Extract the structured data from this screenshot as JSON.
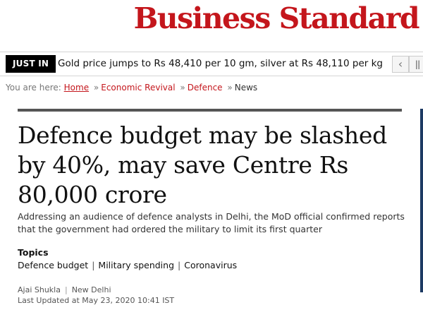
{
  "brand": {
    "logo_text": "Business Standard",
    "accent_color": "#c4161c"
  },
  "ticker": {
    "badge": "JUST IN",
    "headline": "Gold price jumps to Rs 48,410 per 10 gm, silver at Rs 48,110 per kg",
    "prev_icon": "chevron-left-icon",
    "pause_icon": "pause-icon"
  },
  "breadcrumb": {
    "label": "You are here:",
    "items": [
      "Home",
      "Economic Revival",
      "Defence",
      "News"
    ],
    "separator": "»"
  },
  "article": {
    "headline": "Defence budget may be slashed by 40%, may save Centre Rs 80,000 crore",
    "summary": "Addressing an audience of defence analysts in Delhi, the MoD official confirmed reports that the government had ordered the military to limit its first quarter",
    "topics_label": "Topics",
    "topics": [
      "Defence budget",
      "Military spending",
      "Coronavirus"
    ],
    "author": "Ajai Shukla",
    "location": "New Delhi",
    "last_updated": "Last Updated at May 23, 2020 10:41 IST"
  }
}
